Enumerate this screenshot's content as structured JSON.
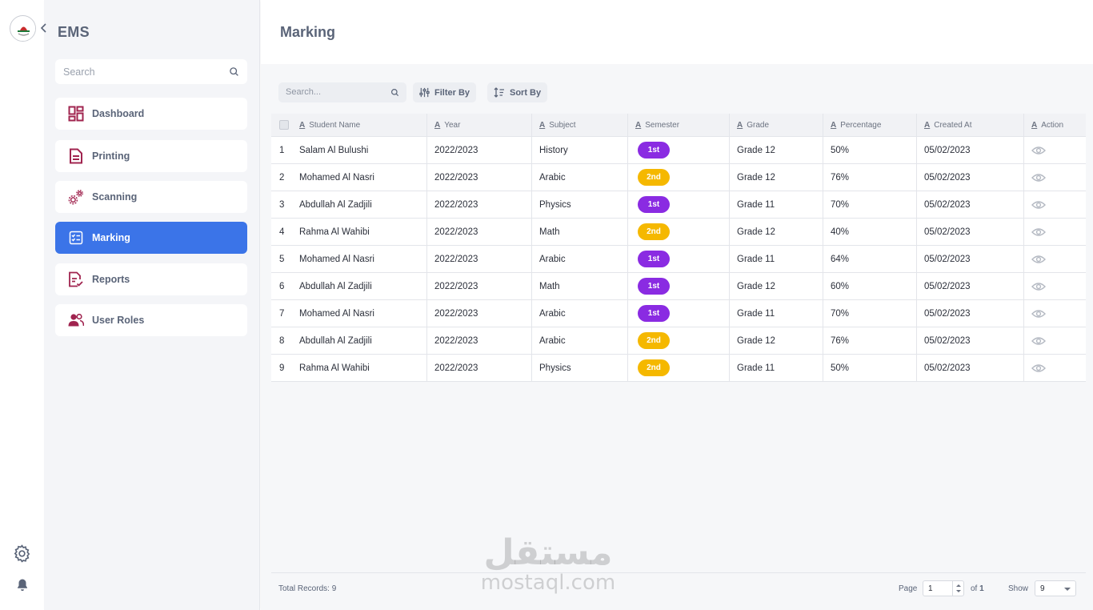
{
  "app": {
    "brand": "EMS"
  },
  "sidebar": {
    "search_placeholder": "Search",
    "items": [
      {
        "label": "Dashboard",
        "icon": "dashboard-icon",
        "active": false
      },
      {
        "label": "Printing",
        "icon": "document-icon",
        "active": false
      },
      {
        "label": "Scanning",
        "icon": "gears-icon",
        "active": false
      },
      {
        "label": "Marking",
        "icon": "checklist-icon",
        "active": true
      },
      {
        "label": "Reports",
        "icon": "report-check-icon",
        "active": false
      },
      {
        "label": "User Roles",
        "icon": "users-icon",
        "active": false
      }
    ]
  },
  "header": {
    "title": "Marking"
  },
  "toolbar": {
    "search_placeholder": "Search...",
    "filter_label": "Filter By",
    "sort_label": "Sort By"
  },
  "table": {
    "columns": [
      "Student Name",
      "Year",
      "Subject",
      "Semester",
      "Grade",
      "Percentage",
      "Created At",
      "Action"
    ],
    "rows": [
      {
        "no": "1",
        "name": "Salam Al Bulushi",
        "year": "2022/2023",
        "subject": "History",
        "semester": "1st",
        "grade": "Grade 12",
        "percentage": "50%",
        "created": "05/02/2023"
      },
      {
        "no": "2",
        "name": "Mohamed Al Nasri",
        "year": "2022/2023",
        "subject": "Arabic",
        "semester": "2nd",
        "grade": "Grade 12",
        "percentage": "76%",
        "created": "05/02/2023"
      },
      {
        "no": "3",
        "name": "Abdullah Al Zadjili",
        "year": "2022/2023",
        "subject": "Physics",
        "semester": "1st",
        "grade": "Grade 11",
        "percentage": "70%",
        "created": "05/02/2023"
      },
      {
        "no": "4",
        "name": "Rahma Al Wahibi",
        "year": "2022/2023",
        "subject": "Math",
        "semester": "2nd",
        "grade": "Grade 12",
        "percentage": "40%",
        "created": "05/02/2023"
      },
      {
        "no": "5",
        "name": "Mohamed Al Nasri",
        "year": "2022/2023",
        "subject": "Arabic",
        "semester": "1st",
        "grade": "Grade 11",
        "percentage": "64%",
        "created": "05/02/2023"
      },
      {
        "no": "6",
        "name": "Abdullah Al Zadjili",
        "year": "2022/2023",
        "subject": "Math",
        "semester": "1st",
        "grade": "Grade 12",
        "percentage": "60%",
        "created": "05/02/2023"
      },
      {
        "no": "7",
        "name": "Mohamed Al Nasri",
        "year": "2022/2023",
        "subject": "Arabic",
        "semester": "1st",
        "grade": "Grade 11",
        "percentage": "70%",
        "created": "05/02/2023"
      },
      {
        "no": "8",
        "name": "Abdullah Al Zadjili",
        "year": "2022/2023",
        "subject": "Arabic",
        "semester": "2nd",
        "grade": "Grade 12",
        "percentage": "76%",
        "created": "05/02/2023"
      },
      {
        "no": "9",
        "name": "Rahma Al Wahibi",
        "year": "2022/2023",
        "subject": "Physics",
        "semester": "2nd",
        "grade": "Grade 11",
        "percentage": "50%",
        "created": "05/02/2023"
      }
    ]
  },
  "footer": {
    "total_label": "Total Records:",
    "total_value": "9",
    "page_label": "Page",
    "page_value": "1",
    "of_label": "of",
    "of_value": "1",
    "show_label": "Show",
    "show_value": "9"
  },
  "watermark": {
    "arabic": "مستقل",
    "latin": "mostaql.com"
  },
  "colors": {
    "accent": "#3b74e8",
    "brand_icon": "#a0244f",
    "semester_1st": "#8a2be2",
    "semester_2nd": "#f5b800"
  }
}
